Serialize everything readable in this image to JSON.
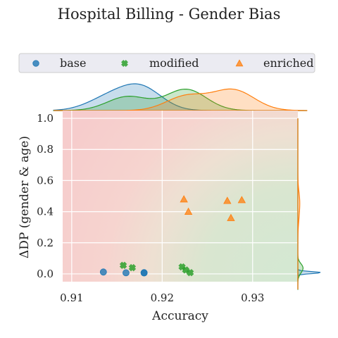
{
  "chart_data": {
    "type": "scatter",
    "title": "Hospital Billing - Gender Bias",
    "xlabel": "Accuracy",
    "ylabel": "ΔDP (gender & age)",
    "xlim": [
      0.909,
      0.935
    ],
    "ylim": [
      -0.05,
      1.05
    ],
    "xticks": [
      0.91,
      0.92,
      0.93
    ],
    "xtick_labels": [
      "0.91",
      "0.92",
      "0.93"
    ],
    "yticks": [
      0.0,
      0.2,
      0.4,
      0.6,
      0.8,
      1.0
    ],
    "ytick_labels": [
      "0.0",
      "0.2",
      "0.4",
      "0.6",
      "0.8",
      "1.0"
    ],
    "grid": true,
    "legend_position": "top",
    "marginals": "kde",
    "series": [
      {
        "name": "base",
        "marker": "circle",
        "color": "#1f77b4",
        "points": [
          [
            0.9135,
            0.012
          ],
          [
            0.916,
            0.007
          ],
          [
            0.918,
            0.006
          ],
          [
            0.918,
            0.008
          ]
        ]
      },
      {
        "name": "modified",
        "marker": "x",
        "color": "#2ca02c",
        "points": [
          [
            0.9157,
            0.055
          ],
          [
            0.9167,
            0.04
          ],
          [
            0.9222,
            0.045
          ],
          [
            0.9226,
            0.025
          ],
          [
            0.9231,
            0.008
          ]
        ]
      },
      {
        "name": "enriched",
        "marker": "triangle",
        "color": "#ff7f0e",
        "points": [
          [
            0.9224,
            0.48
          ],
          [
            0.9229,
            0.4
          ],
          [
            0.9272,
            0.47
          ],
          [
            0.9276,
            0.36
          ],
          [
            0.9288,
            0.475
          ]
        ]
      }
    ]
  }
}
